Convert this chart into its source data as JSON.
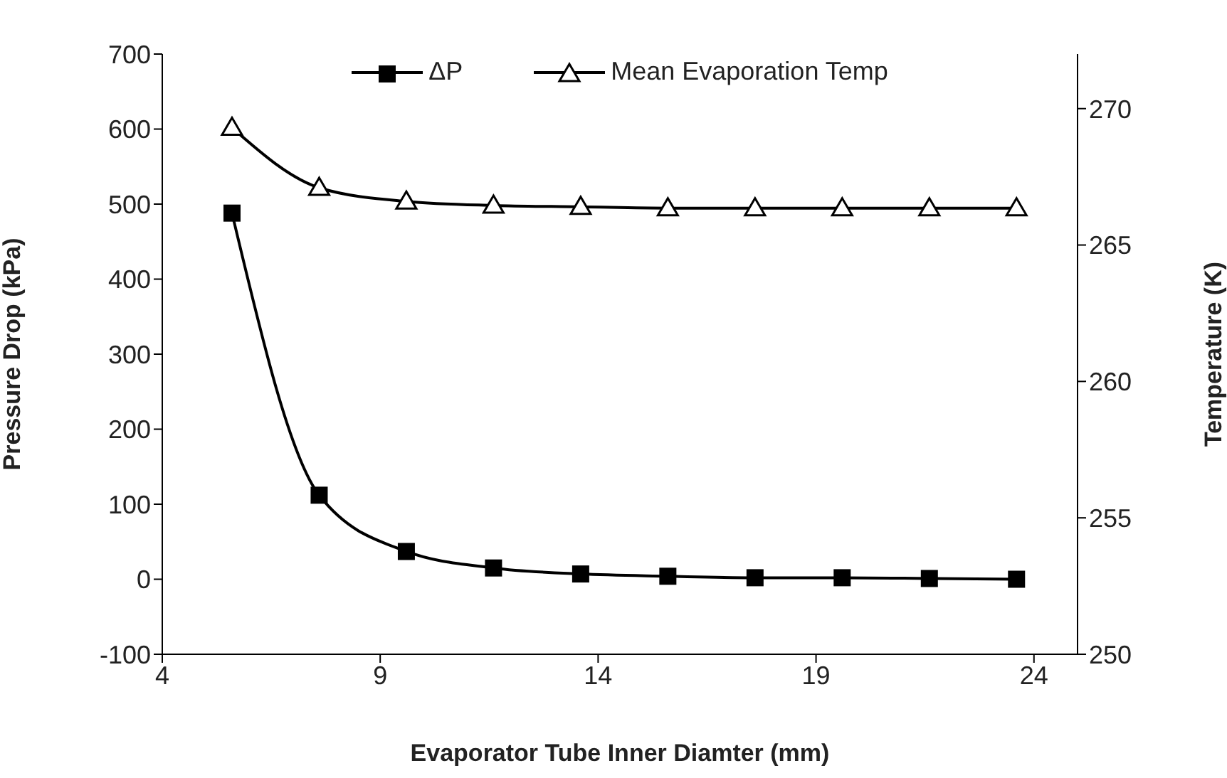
{
  "chart_data": {
    "type": "line",
    "xlabel": "Evaporator Tube Inner Diamter (mm)",
    "ylabel": "Pressure Drop (kPa)",
    "y2label": "Temperature (K)",
    "x": [
      5.6,
      7.6,
      9.6,
      11.6,
      13.6,
      15.6,
      17.6,
      19.6,
      21.6,
      23.6
    ],
    "xlim": [
      4,
      25
    ],
    "xticks": [
      4,
      9,
      14,
      19,
      24
    ],
    "ylim": [
      -100,
      700
    ],
    "yticks": [
      -100,
      0,
      100,
      200,
      300,
      400,
      500,
      600,
      700
    ],
    "y2lim": [
      250,
      272
    ],
    "y2ticks": [
      250,
      255,
      260,
      265,
      270
    ],
    "grid": false,
    "legend": "top",
    "line_style": "solid",
    "series": [
      {
        "name": "ΔP",
        "color": "#000000",
        "marker": "square",
        "values": [
          488,
          112,
          37,
          15,
          7,
          4,
          2,
          2,
          1,
          0
        ]
      },
      {
        "name": "Mean Evaporation Temp",
        "color": "#000000",
        "marker": "triangle",
        "axis": "y2",
        "values": [
          269.3,
          267.1,
          266.6,
          266.45,
          266.4,
          266.35,
          266.35,
          266.35,
          266.35,
          266.35
        ]
      }
    ]
  }
}
